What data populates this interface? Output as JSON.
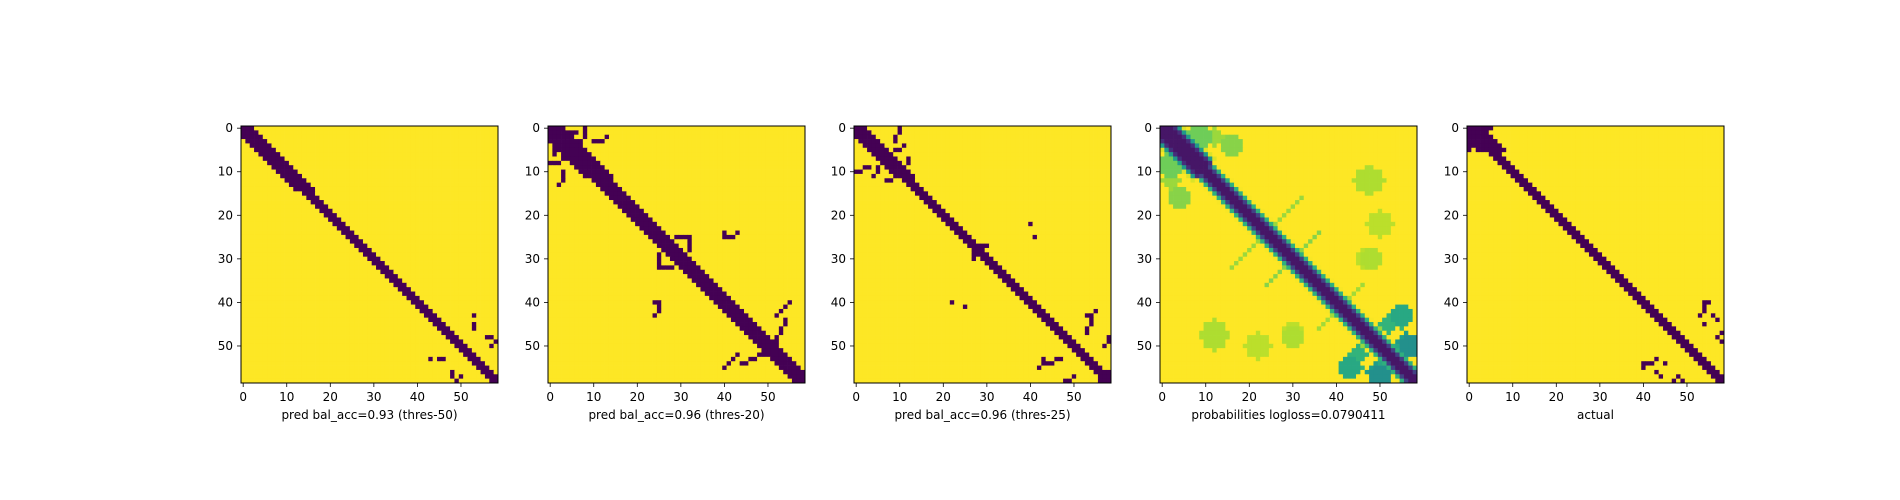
{
  "chart_data": [
    {
      "type": "heatmap",
      "xlabel": "pred bal_acc=0.93 (thres-50)",
      "title": "",
      "ylabel": "",
      "matrix_size": 59,
      "xlim": [
        0,
        58
      ],
      "ylim": [
        58,
        0
      ],
      "x_ticks": [
        "0",
        "10",
        "20",
        "30",
        "40",
        "50"
      ],
      "y_ticks": [
        "0",
        "10",
        "20",
        "30",
        "40",
        "50"
      ],
      "colormap": "viridis",
      "value_range": [
        0,
        1
      ],
      "values_description": "binary contact-map prediction: 0 near the diagonal (|i-j|<=2 for i<15, |i-j|<=1 otherwise), 1 elsewhere",
      "diagonal_band": [
        [
          0,
          15,
          2
        ],
        [
          15,
          59,
          1
        ]
      ],
      "extra_zero_cells": [
        [
          45,
          53
        ],
        [
          46,
          53
        ],
        [
          49,
          58
        ],
        [
          50,
          57
        ],
        [
          53,
          43
        ],
        [
          56,
          48
        ],
        [
          57,
          48
        ]
      ]
    },
    {
      "type": "heatmap",
      "xlabel": "pred bal_acc=0.96 (thres-20)",
      "title": "",
      "ylabel": "",
      "matrix_size": 59,
      "xlim": [
        0,
        58
      ],
      "ylim": [
        58,
        0
      ],
      "x_ticks": [
        "0",
        "10",
        "20",
        "30",
        "40",
        "50"
      ],
      "y_ticks": [
        "0",
        "10",
        "20",
        "30",
        "40",
        "50"
      ],
      "colormap": "viridis",
      "value_range": [
        0,
        1
      ],
      "diagonal_band": [
        [
          0,
          12,
          3
        ],
        [
          12,
          59,
          2
        ]
      ],
      "extra_zero_cells": [
        [
          0,
          8
        ],
        [
          1,
          8
        ],
        [
          2,
          8
        ],
        [
          3,
          7
        ],
        [
          4,
          7
        ],
        [
          5,
          6
        ],
        [
          5,
          1
        ],
        [
          6,
          1
        ],
        [
          10,
          3
        ],
        [
          11,
          3
        ],
        [
          12,
          3
        ],
        [
          13,
          2
        ],
        [
          10,
          11
        ],
        [
          11,
          12
        ],
        [
          24,
          40
        ],
        [
          25,
          40
        ],
        [
          26,
          32
        ],
        [
          27,
          32
        ],
        [
          28,
          32
        ],
        [
          29,
          25
        ],
        [
          30,
          25
        ],
        [
          31,
          25
        ],
        [
          32,
          25
        ],
        [
          41,
          25
        ],
        [
          42,
          25
        ],
        [
          43,
          24
        ],
        [
          44,
          54
        ],
        [
          45,
          54
        ],
        [
          46,
          53
        ],
        [
          47,
          53
        ],
        [
          48,
          52
        ],
        [
          49,
          52
        ],
        [
          50,
          51
        ],
        [
          52,
          43
        ],
        [
          53,
          42
        ],
        [
          54,
          41
        ],
        [
          55,
          40
        ],
        [
          56,
          58
        ],
        [
          57,
          58
        ],
        [
          58,
          57
        ]
      ]
    },
    {
      "type": "heatmap",
      "xlabel": "pred bal_acc=0.96 (thres-25)",
      "title": "",
      "ylabel": "",
      "matrix_size": 59,
      "xlim": [
        0,
        58
      ],
      "ylim": [
        58,
        0
      ],
      "x_ticks": [
        "0",
        "10",
        "20",
        "30",
        "40",
        "50"
      ],
      "y_ticks": [
        "0",
        "10",
        "20",
        "30",
        "40",
        "50"
      ],
      "colormap": "viridis",
      "value_range": [
        0,
        1
      ],
      "diagonal_band": [
        [
          0,
          12,
          2
        ],
        [
          12,
          59,
          1
        ]
      ],
      "extra_zero_cells": [
        [
          0,
          10
        ],
        [
          1,
          10
        ],
        [
          2,
          9
        ],
        [
          3,
          9
        ],
        [
          7,
          12
        ],
        [
          8,
          12
        ],
        [
          9,
          5
        ],
        [
          10,
          5
        ],
        [
          11,
          4
        ],
        [
          22,
          40
        ],
        [
          27,
          28
        ],
        [
          28,
          28
        ],
        [
          29,
          27
        ],
        [
          30,
          27
        ],
        [
          41,
          25
        ],
        [
          44,
          54
        ],
        [
          45,
          54
        ],
        [
          46,
          53
        ],
        [
          47,
          53
        ],
        [
          48,
          58
        ],
        [
          49,
          58
        ],
        [
          50,
          57
        ],
        [
          53,
          43
        ],
        [
          54,
          43
        ],
        [
          55,
          42
        ],
        [
          56,
          58
        ],
        [
          57,
          58
        ]
      ]
    },
    {
      "type": "heatmap",
      "xlabel": "probabilities logloss=0.0790411",
      "title": "",
      "ylabel": "",
      "matrix_size": 59,
      "xlim": [
        0,
        58
      ],
      "ylim": [
        58,
        0
      ],
      "x_ticks": [
        "0",
        "10",
        "20",
        "30",
        "40",
        "50"
      ],
      "y_ticks": [
        "0",
        "10",
        "20",
        "30",
        "40",
        "50"
      ],
      "colormap": "viridis",
      "value_range": [
        0,
        1
      ],
      "values_description": "continuous contact probabilities: low (dark) on the main diagonal, rising to ~1 (yellow) away from it, with greenish anti-diagonal streaks and patches",
      "diagonal_dark_halfwidth": 1.3,
      "diagonal_transition_width": 3.0,
      "diagonal_start_boost": 1.2,
      "anti_diagonal_streaks": [
        [
          48,
          23,
          32,
          0.7,
          0.85
        ],
        [
          60,
          26,
          36,
          0.7,
          0.82
        ],
        [
          82,
          36,
          46,
          0.7,
          0.86
        ],
        [
          96,
          42,
          54,
          0.7,
          0.84
        ],
        [
          104,
          48,
          56,
          0.8,
          0.6
        ]
      ],
      "patches": [
        [
          2,
          8,
          2.5,
          0.78
        ],
        [
          9,
          2,
          2.5,
          0.78
        ],
        [
          3,
          3,
          2.0,
          0.82
        ],
        [
          12,
          2,
          2.0,
          0.85
        ],
        [
          4,
          16,
          2.5,
          0.82
        ],
        [
          12,
          48,
          3.0,
          0.88
        ],
        [
          22,
          50,
          3.0,
          0.9
        ],
        [
          30,
          47,
          2.5,
          0.9
        ],
        [
          47,
          12,
          3.0,
          0.88
        ],
        [
          48,
          30,
          2.5,
          0.88
        ],
        [
          50,
          22,
          3.0,
          0.9
        ],
        [
          55,
          43,
          2.5,
          0.6
        ],
        [
          52,
          45,
          2.0,
          0.65
        ],
        [
          50,
          57,
          2.5,
          0.5
        ],
        [
          44,
          55,
          2.0,
          0.65
        ],
        [
          56,
          49,
          2.0,
          0.55
        ]
      ]
    },
    {
      "type": "heatmap",
      "xlabel": "actual",
      "title": "",
      "ylabel": "",
      "matrix_size": 59,
      "xlim": [
        0,
        58
      ],
      "ylim": [
        58,
        0
      ],
      "x_ticks": [
        "0",
        "10",
        "20",
        "30",
        "40",
        "50"
      ],
      "y_ticks": [
        "0",
        "10",
        "20",
        "30",
        "40",
        "50"
      ],
      "colormap": "viridis",
      "value_range": [
        0,
        1
      ],
      "values_description": "ground-truth contact map: 0 near the diagonal, 1 elsewhere",
      "diagonal_band": [
        [
          0,
          6,
          3
        ],
        [
          6,
          59,
          1
        ]
      ],
      "extra_zero_cells": [
        [
          0,
          4
        ],
        [
          1,
          4
        ],
        [
          2,
          4
        ],
        [
          3,
          0
        ],
        [
          4,
          0
        ],
        [
          5,
          0
        ],
        [
          41,
          54
        ],
        [
          42,
          54
        ],
        [
          43,
          53
        ],
        [
          45,
          54
        ],
        [
          47,
          58
        ],
        [
          48,
          57
        ],
        [
          49,
          58
        ],
        [
          54,
          40
        ],
        [
          55,
          40
        ],
        [
          56,
          43
        ],
        [
          57,
          44
        ]
      ]
    }
  ]
}
